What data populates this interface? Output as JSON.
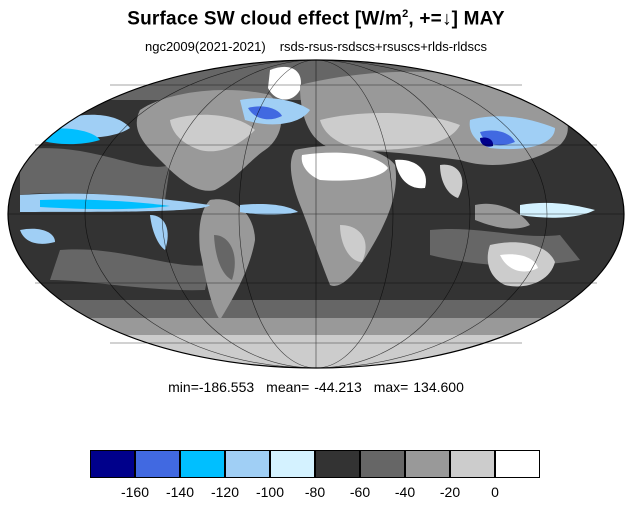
{
  "header": {
    "title_main": "Surface SW cloud effect [W/m",
    "title_sup": "2",
    "title_tail": ", +=↓]  MAY",
    "subtitle_left": "ngc2009(2021-2021)",
    "subtitle_right": "rsds-rsus-rsdscs+rsuscs+rlds-rldscs"
  },
  "stats": {
    "min": "min=-186.553",
    "mean": "mean= -44.213",
    "max": "max= 134.600"
  },
  "colorbar": {
    "colors": [
      "#00008b",
      "#4169e1",
      "#00bfff",
      "#a0cff5",
      "#d4f2ff",
      "#333333",
      "#666666",
      "#999999",
      "#cccccc",
      "#ffffff"
    ],
    "labels": [
      "-160",
      "-140",
      "-120",
      "-100",
      "-80",
      "-60",
      "-40",
      "-20",
      "0"
    ]
  },
  "map": {
    "projection": "Mollweide",
    "grid": true,
    "palette": {
      "ocean_low": "#333333",
      "ocean_mid": "#666666",
      "high_lat": "#999999",
      "land_light": "#cccccc",
      "desert": "#ffffff",
      "cyan_light": "#d4f2ff",
      "cyan_mid": "#a0cff5",
      "sky": "#00bfff",
      "royal": "#4169e1",
      "navy": "#00008b"
    }
  }
}
